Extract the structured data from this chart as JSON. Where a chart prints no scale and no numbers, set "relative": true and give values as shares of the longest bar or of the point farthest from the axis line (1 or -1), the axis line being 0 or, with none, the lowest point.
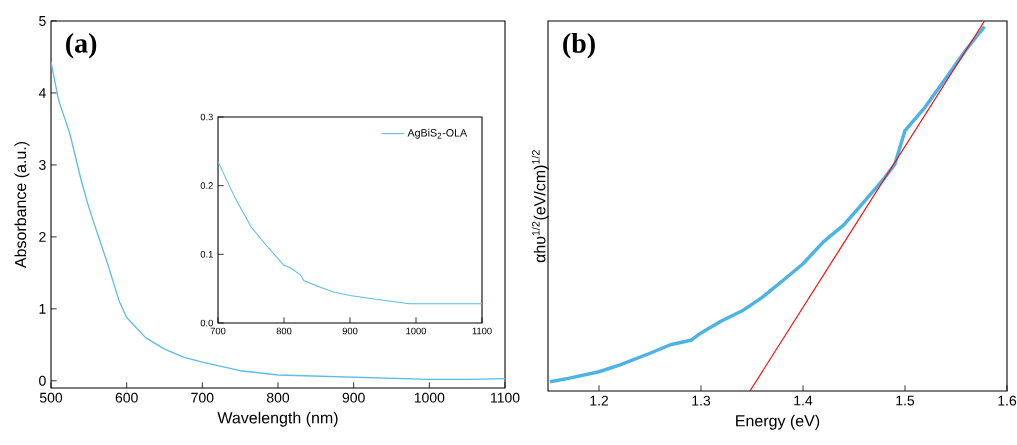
{
  "chart_data": [
    {
      "type": "line",
      "xlabel": "Wavelength (nm)",
      "ylabel": "Absorbance (a.u.)",
      "annotations": [
        "(a)"
      ],
      "x": [
        500,
        510,
        525,
        540,
        550,
        560,
        575,
        590,
        600,
        625,
        650,
        675,
        700,
        750,
        800,
        900,
        1000,
        1050,
        1100
      ],
      "series": [
        {
          "color": "#5bbde8",
          "values": [
            4.43,
            3.9,
            3.43,
            2.78,
            2.41,
            2.09,
            1.62,
            1.11,
            0.88,
            0.6,
            0.44,
            0.33,
            0.26,
            0.14,
            0.08,
            0.05,
            0.02,
            0.02,
            0.03
          ]
        }
      ],
      "xlim": [
        500,
        1100
      ],
      "ylim": [
        -0.1,
        5
      ],
      "xticks": [
        500,
        600,
        700,
        800,
        900,
        1000,
        1100
      ],
      "yticks": [
        0,
        1,
        2,
        3,
        4,
        5
      ]
    },
    {
      "type": "line",
      "legend": "top right",
      "x": [
        700,
        725,
        750,
        775,
        800,
        810,
        825,
        830,
        850,
        875,
        900,
        950,
        990,
        1000,
        1100
      ],
      "series": [
        {
          "name": "AgBiS$_{2}$-OLA",
          "color": "#5bbde8",
          "values": [
            0.235,
            0.184,
            0.14,
            0.111,
            0.084,
            0.08,
            0.07,
            0.062,
            0.054,
            0.045,
            0.04,
            0.033,
            0.028,
            0.028,
            0.028
          ]
        }
      ],
      "xlim": [
        700,
        1100
      ],
      "ylim": [
        0,
        0.3
      ],
      "xticks": [
        700,
        800,
        900,
        1000,
        1100
      ],
      "yticks": [
        {
          "value": 0,
          "label": "0.0"
        },
        0.1,
        0.2,
        0.3
      ]
    },
    {
      "type": "line",
      "xlabel": "Energy (eV)",
      "ylabel": "αhυ$^{1/2}$(eV/cm)$^{1/2}$",
      "annotations": [
        "(b)"
      ],
      "relative": true,
      "tick_labels": "x",
      "x": [
        1.152,
        1.17,
        1.2,
        1.22,
        1.25,
        1.27,
        1.29,
        1.3,
        1.32,
        1.34,
        1.36,
        1.38,
        1.4,
        1.42,
        1.44,
        1.46,
        1.48,
        1.49,
        1.5,
        1.52,
        1.54,
        1.56,
        1.578
      ],
      "series": [
        {
          "color": "#4db3e6",
          "values": [
            0.025,
            0.034,
            0.052,
            0.07,
            0.102,
            0.125,
            0.137,
            0.157,
            0.189,
            0.216,
            0.253,
            0.298,
            0.344,
            0.403,
            0.449,
            0.512,
            0.576,
            0.613,
            0.704,
            0.768,
            0.845,
            0.923,
            0.985
          ]
        },
        {
          "type": "line",
          "color": "#ee1111",
          "x": [
            1.578,
            1.348
          ],
          "values": [
            1,
            0
          ]
        }
      ],
      "xlim": [
        1.15,
        1.6
      ],
      "xticks": [
        1.2,
        1.3,
        1.4,
        1.5,
        1.6
      ]
    }
  ]
}
